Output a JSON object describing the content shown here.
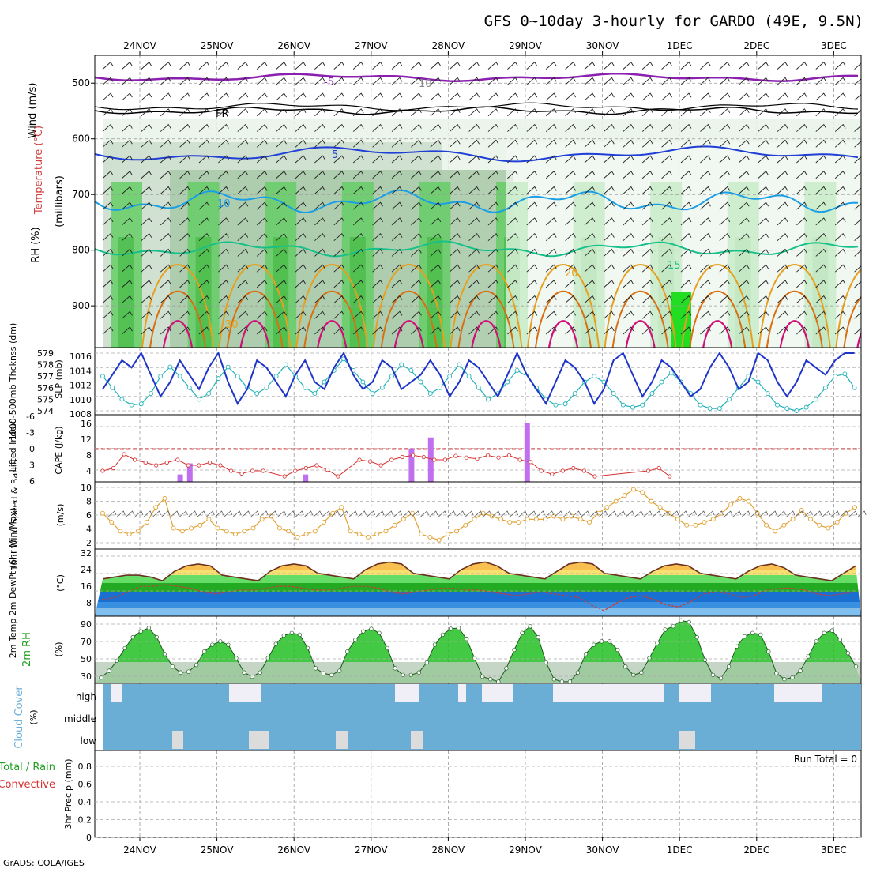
{
  "title": "GFS 0~10day 3-hourly for GARDO (49E, 9.5N)",
  "credit": "GrADS: COLA/IGES",
  "dates": [
    "24NOV",
    "25NOV",
    "26NOV",
    "27NOV",
    "28NOV",
    "29NOV",
    "30NOV",
    "1DEC",
    "2DEC",
    "3DEC"
  ],
  "colors": {
    "purple": "#8a1fb0",
    "black": "#000000",
    "blue": "#1f3fd6",
    "cyan": "#1a9fe6",
    "teal": "#16c08a",
    "orange": "#e6a020",
    "dkorange": "#d86f10",
    "magenta": "#d01078",
    "slp": "#1f35c8",
    "thick": "#22b3b8",
    "li": "#d83030",
    "cape": "#c070ee",
    "wind": "#e0a030",
    "cloud": "#6aaed6",
    "rh_green": "#22c022"
  },
  "panels": {
    "sounding": {
      "ylabel_rh": "RH (%)",
      "ylabel_temp": "Temperature (°C)",
      "ylabel_wind": "Wind (m/s)",
      "ylabel_mb": "(millibars)",
      "yticks": [
        "500",
        "600",
        "700",
        "800",
        "900"
      ],
      "contour_labels": [
        "-5",
        "FR",
        "5",
        "10",
        "15",
        "20",
        "30",
        "10"
      ]
    },
    "slp": {
      "ylabel_thick": "1000-500mb Thcknss (dm)",
      "ylabel_slp": "SLP (mb)",
      "yticks_left": [
        "579",
        "578",
        "577",
        "576",
        "575",
        "574"
      ],
      "yticks_right": [
        "1016",
        "1014",
        "1012",
        "1010",
        "1008"
      ]
    },
    "cape": {
      "ylabel_li": "Lifted Index",
      "ylabel_cape": "CAPE (J/kg)",
      "yticks_left": [
        "-6",
        "-3",
        "0",
        "3",
        "6"
      ],
      "yticks_right": [
        "16",
        "12",
        "8",
        "4"
      ]
    },
    "wind10": {
      "ylabel": "10m Wind Speed & Barbs",
      "unit": "(m/s)",
      "yticks": [
        "10",
        "8",
        "6",
        "4",
        "2"
      ]
    },
    "temp2m": {
      "ylabel": "2m Temp 2m DewPt (6hr Min/Max)",
      "unit": "(°C)",
      "yticks": [
        "32",
        "24",
        "16",
        "8"
      ]
    },
    "rh2m": {
      "ylabel": "2m RH",
      "unit": "(%)",
      "yticks": [
        "90",
        "70",
        "50",
        "30"
      ]
    },
    "cloud": {
      "ylabel": "Cloud Cover",
      "unit": "(%)",
      "levels": [
        "high",
        "middle",
        "low"
      ]
    },
    "precip": {
      "ylabel_total": "Total / Rain",
      "ylabel_conv": "Convective",
      "ylabel": "3hr Precip (mm)",
      "yticks": [
        "0.8",
        "0.6",
        "0.4",
        "0.2",
        "0"
      ],
      "run_total": "Run Total = 0"
    }
  },
  "chart_data": {
    "type": "line",
    "x_start": "23NOV 12Z",
    "x_step_hours": 3,
    "slp_mb": [
      1011,
      1013,
      1015,
      1014,
      1016,
      1013,
      1010,
      1012,
      1015,
      1013,
      1011,
      1014,
      1016,
      1012,
      1009,
      1011,
      1015,
      1014,
      1012,
      1010,
      1013,
      1015,
      1012,
      1011,
      1014,
      1016,
      1013,
      1011,
      1012,
      1015,
      1014,
      1011,
      1012,
      1013,
      1015,
      1013,
      1010,
      1012,
      1015,
      1014,
      1012,
      1010,
      1013,
      1016,
      1013,
      1011,
      1009,
      1012,
      1015,
      1014,
      1012,
      1009,
      1011,
      1015,
      1016,
      1013,
      1010,
      1012,
      1015,
      1014,
      1012,
      1010,
      1011,
      1014,
      1016,
      1014,
      1011,
      1012,
      1016,
      1015,
      1012,
      1010,
      1012,
      1015,
      1014,
      1013,
      1015,
      1016,
      1016
    ],
    "thickness_dm": [
      577,
      576,
      575,
      574.5,
      574.6,
      575.5,
      577,
      577.8,
      577,
      576,
      575,
      575.5,
      576.8,
      577.8,
      577,
      576,
      575.5,
      576,
      577,
      578,
      577,
      576,
      575.5,
      576.5,
      577.5,
      578.5,
      577.5,
      576.5,
      575.5,
      576,
      577,
      578,
      577.5,
      576.5,
      575.5,
      576,
      577,
      578,
      577,
      576,
      575,
      575.5,
      576.5,
      577.5,
      577,
      576,
      575,
      574.5,
      574.6,
      575.5,
      576.5,
      577,
      576.5,
      575.5,
      574.5,
      574.3,
      574.5,
      575.5,
      576.5,
      577.3,
      576.5,
      575.5,
      574.5,
      574.2,
      574.2,
      575,
      576,
      577,
      576.5,
      575.5,
      574.5,
      574.2,
      574,
      574.3,
      575,
      576,
      577,
      577.2,
      576
    ],
    "lifted_index": [
      4,
      3.5,
      1,
      2,
      2.5,
      3,
      2.5,
      2,
      3,
      3,
      2.5,
      3,
      4,
      4.5,
      4,
      4,
      6,
      5,
      4,
      3.5,
      3,
      3.8,
      5,
      6,
      2,
      2.3,
      3,
      2,
      1.5,
      1.2,
      1.5,
      2,
      2,
      1.3,
      1.6,
      1.8,
      1.2,
      1.6,
      1.2,
      2,
      2.4,
      4,
      4.6,
      4,
      3.5,
      4,
      5,
      6,
      6,
      6,
      6,
      4,
      3.5,
      5,
      6,
      6,
      6,
      6,
      6,
      6,
      5,
      4,
      5,
      6,
      6,
      6,
      5,
      3.8,
      3.5,
      4,
      4.5,
      6
    ],
    "cape_jkg": {
      "bars": [
        [
          8,
          2
        ],
        [
          9,
          5
        ],
        [
          21,
          2
        ],
        [
          32,
          9
        ],
        [
          34,
          12
        ],
        [
          44,
          16
        ]
      ]
    },
    "wind10_ms": [
      6,
      4.5,
      3,
      2.5,
      3,
      4.5,
      7,
      8.5,
      3.5,
      3,
      3.5,
      4,
      5,
      3.5,
      3,
      2.5,
      3,
      3.5,
      5,
      5.5,
      3.5,
      3,
      2,
      2.5,
      3,
      4.5,
      6,
      7,
      3,
      2.5,
      2,
      2.5,
      3,
      4,
      5,
      6,
      2.5,
      2,
      1.5,
      2.5,
      3,
      4,
      5,
      6,
      5.5,
      5,
      4.5,
      4.5,
      5,
      5,
      5,
      5.5,
      5,
      5.5,
      5,
      4.5,
      6,
      7,
      8,
      9,
      10,
      9.5,
      8,
      7,
      6,
      5,
      4,
      4,
      4.5,
      5,
      6,
      7.5,
      8.5,
      8,
      6,
      4,
      3,
      4,
      5,
      6.5,
      5,
      4,
      3.5,
      4.5,
      6,
      7,
      6
    ],
    "temp2m_c": [
      20,
      21,
      22,
      22,
      21,
      19,
      24,
      27,
      28,
      27,
      22,
      21,
      20,
      19,
      24,
      27,
      28,
      27,
      23,
      22,
      21,
      20,
      25,
      28,
      29,
      28,
      23,
      22,
      21,
      20,
      25,
      28,
      29,
      27,
      23,
      22,
      21,
      20,
      24,
      28,
      29,
      28,
      23,
      22,
      21,
      20,
      24,
      27,
      28,
      27,
      23,
      22,
      21,
      20,
      24,
      27,
      28,
      26,
      22,
      21,
      20,
      19,
      23,
      27,
      28,
      27,
      22,
      21,
      20,
      19,
      24,
      27,
      28,
      27,
      22,
      21,
      20,
      21
    ],
    "dewpt2m_c": [
      9,
      10,
      13,
      16,
      16,
      17,
      16,
      15,
      13,
      12,
      13,
      14,
      14,
      15,
      16,
      16,
      15,
      14,
      14,
      15,
      16,
      16,
      15,
      13,
      12,
      13,
      14,
      15,
      15,
      14,
      14,
      13,
      12,
      11,
      12,
      13,
      12,
      11,
      10,
      6,
      3,
      7,
      10,
      11,
      9,
      6,
      5,
      8,
      12,
      13,
      12,
      10,
      11,
      14,
      15,
      15,
      14,
      12,
      11,
      12,
      13,
      14,
      13,
      11,
      10,
      8,
      6,
      8,
      10,
      12,
      13,
      12,
      10,
      9,
      11
    ],
    "rh2m_pct": [
      27,
      35,
      47,
      62,
      75,
      82,
      86,
      75,
      55,
      40,
      33,
      34,
      42,
      58,
      66,
      70,
      66,
      50,
      33,
      28,
      33,
      50,
      67,
      77,
      80,
      78,
      62,
      38,
      32,
      30,
      35,
      58,
      72,
      82,
      85,
      80,
      62,
      38,
      30,
      30,
      33,
      45,
      66,
      78,
      85,
      86,
      73,
      50,
      28,
      25,
      22,
      38,
      60,
      80,
      88,
      75,
      45,
      25,
      22,
      22,
      33,
      55,
      66,
      70,
      70,
      60,
      40,
      30,
      33,
      50,
      68,
      84,
      88,
      95,
      93,
      75,
      48,
      30,
      26,
      40,
      64,
      76,
      80,
      78,
      58,
      32,
      25,
      27,
      35,
      52,
      70,
      80,
      83,
      72,
      56,
      40
    ]
  }
}
